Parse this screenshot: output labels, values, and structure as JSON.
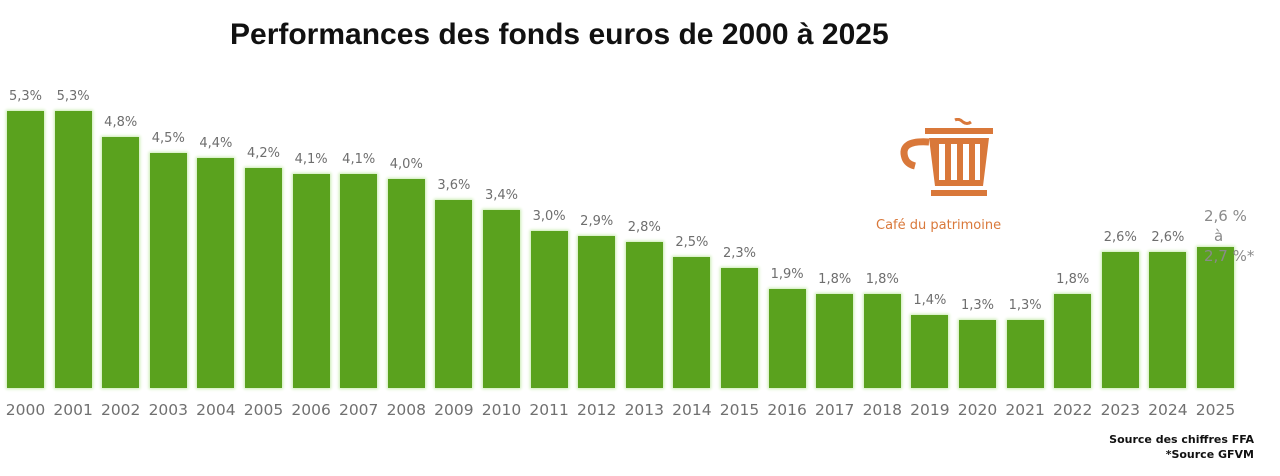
{
  "title": "Performances des fonds euros de 2000 à 2025",
  "logo": {
    "icon": "coffee-cup-icon",
    "text": "Café du patrimoine",
    "color": "#d9783a"
  },
  "sources": {
    "line1": "Source des chiffres FFA",
    "line2": "*Source GFVM"
  },
  "last_label": {
    "line1": "2,6 %",
    "line2": "à",
    "line3": "2,7 %*"
  },
  "bar_color": "#5aa21e",
  "chart_data": {
    "type": "bar",
    "title": "Performances des fonds euros de 2000 à 2025",
    "xlabel": "",
    "ylabel": "",
    "categories": [
      "2000",
      "2001",
      "2002",
      "2003",
      "2004",
      "2005",
      "2006",
      "2007",
      "2008",
      "2009",
      "2010",
      "2011",
      "2012",
      "2013",
      "2014",
      "2015",
      "2016",
      "2017",
      "2018",
      "2019",
      "2020",
      "2021",
      "2022",
      "2023",
      "2024",
      "2025"
    ],
    "values": [
      5.3,
      5.3,
      4.8,
      4.5,
      4.4,
      4.2,
      4.1,
      4.1,
      4.0,
      3.6,
      3.4,
      3.0,
      2.9,
      2.8,
      2.5,
      2.3,
      1.9,
      1.8,
      1.8,
      1.4,
      1.3,
      1.3,
      1.8,
      2.6,
      2.6,
      2.7
    ],
    "labels": [
      "5,3%",
      "5,3%",
      "4,8%",
      "4,5%",
      "4,4%",
      "4,2%",
      "4,1%",
      "4,1%",
      "4,0%",
      "3,6%",
      "3,4%",
      "3,0%",
      "2,9%",
      "2,8%",
      "2,5%",
      "2,3%",
      "1,9%",
      "1,8%",
      "1,8%",
      "1,4%",
      "1,3%",
      "1,3%",
      "1,8%",
      "2,6%",
      "2,6%",
      ""
    ],
    "annotations": [
      "2025: 2,6 % à 2,7 %*",
      "Source des chiffres FFA",
      "*Source GFVM"
    ],
    "grid": false,
    "legend": null
  }
}
